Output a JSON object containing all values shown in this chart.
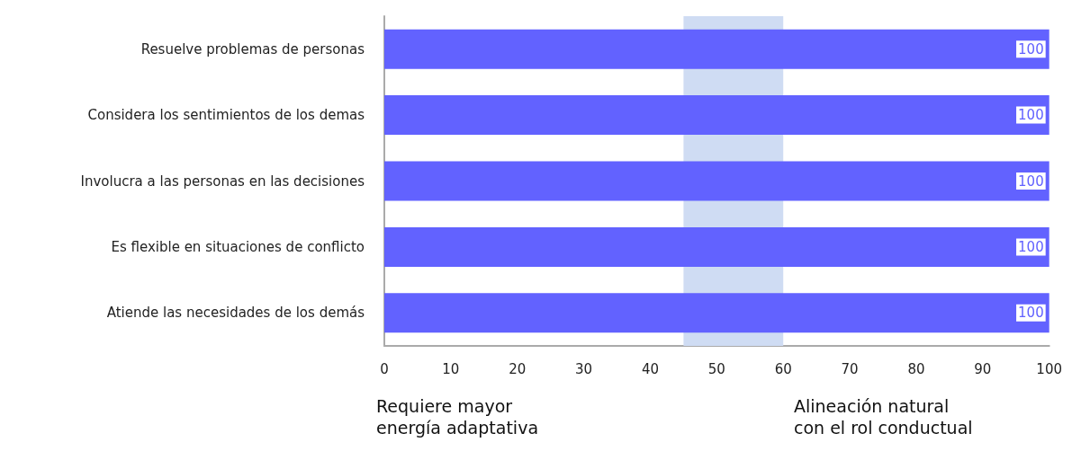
{
  "chart_data": {
    "type": "bar",
    "orientation": "horizontal",
    "categories": [
      "Resuelve problemas de personas",
      "Considera los sentimientos de los demas",
      "Involucra a las personas en las decisiones",
      "Es flexible en situaciones de conflicto",
      "Atiende las necesidades de los demás"
    ],
    "values": [
      100,
      100,
      100,
      100,
      100
    ],
    "color": "#6262ff",
    "data_labels": true,
    "xlim": [
      0,
      100
    ],
    "xticks": [
      0,
      10,
      20,
      30,
      40,
      50,
      60,
      70,
      80,
      90,
      100
    ],
    "bands": [
      {
        "axis": "x",
        "from": 45,
        "to": 60,
        "color": "#cfdcf3"
      }
    ],
    "annotations": [
      "Requiere mayor\nenergía adaptativa",
      "Alineación natural\ncon el rol conductual"
    ]
  }
}
